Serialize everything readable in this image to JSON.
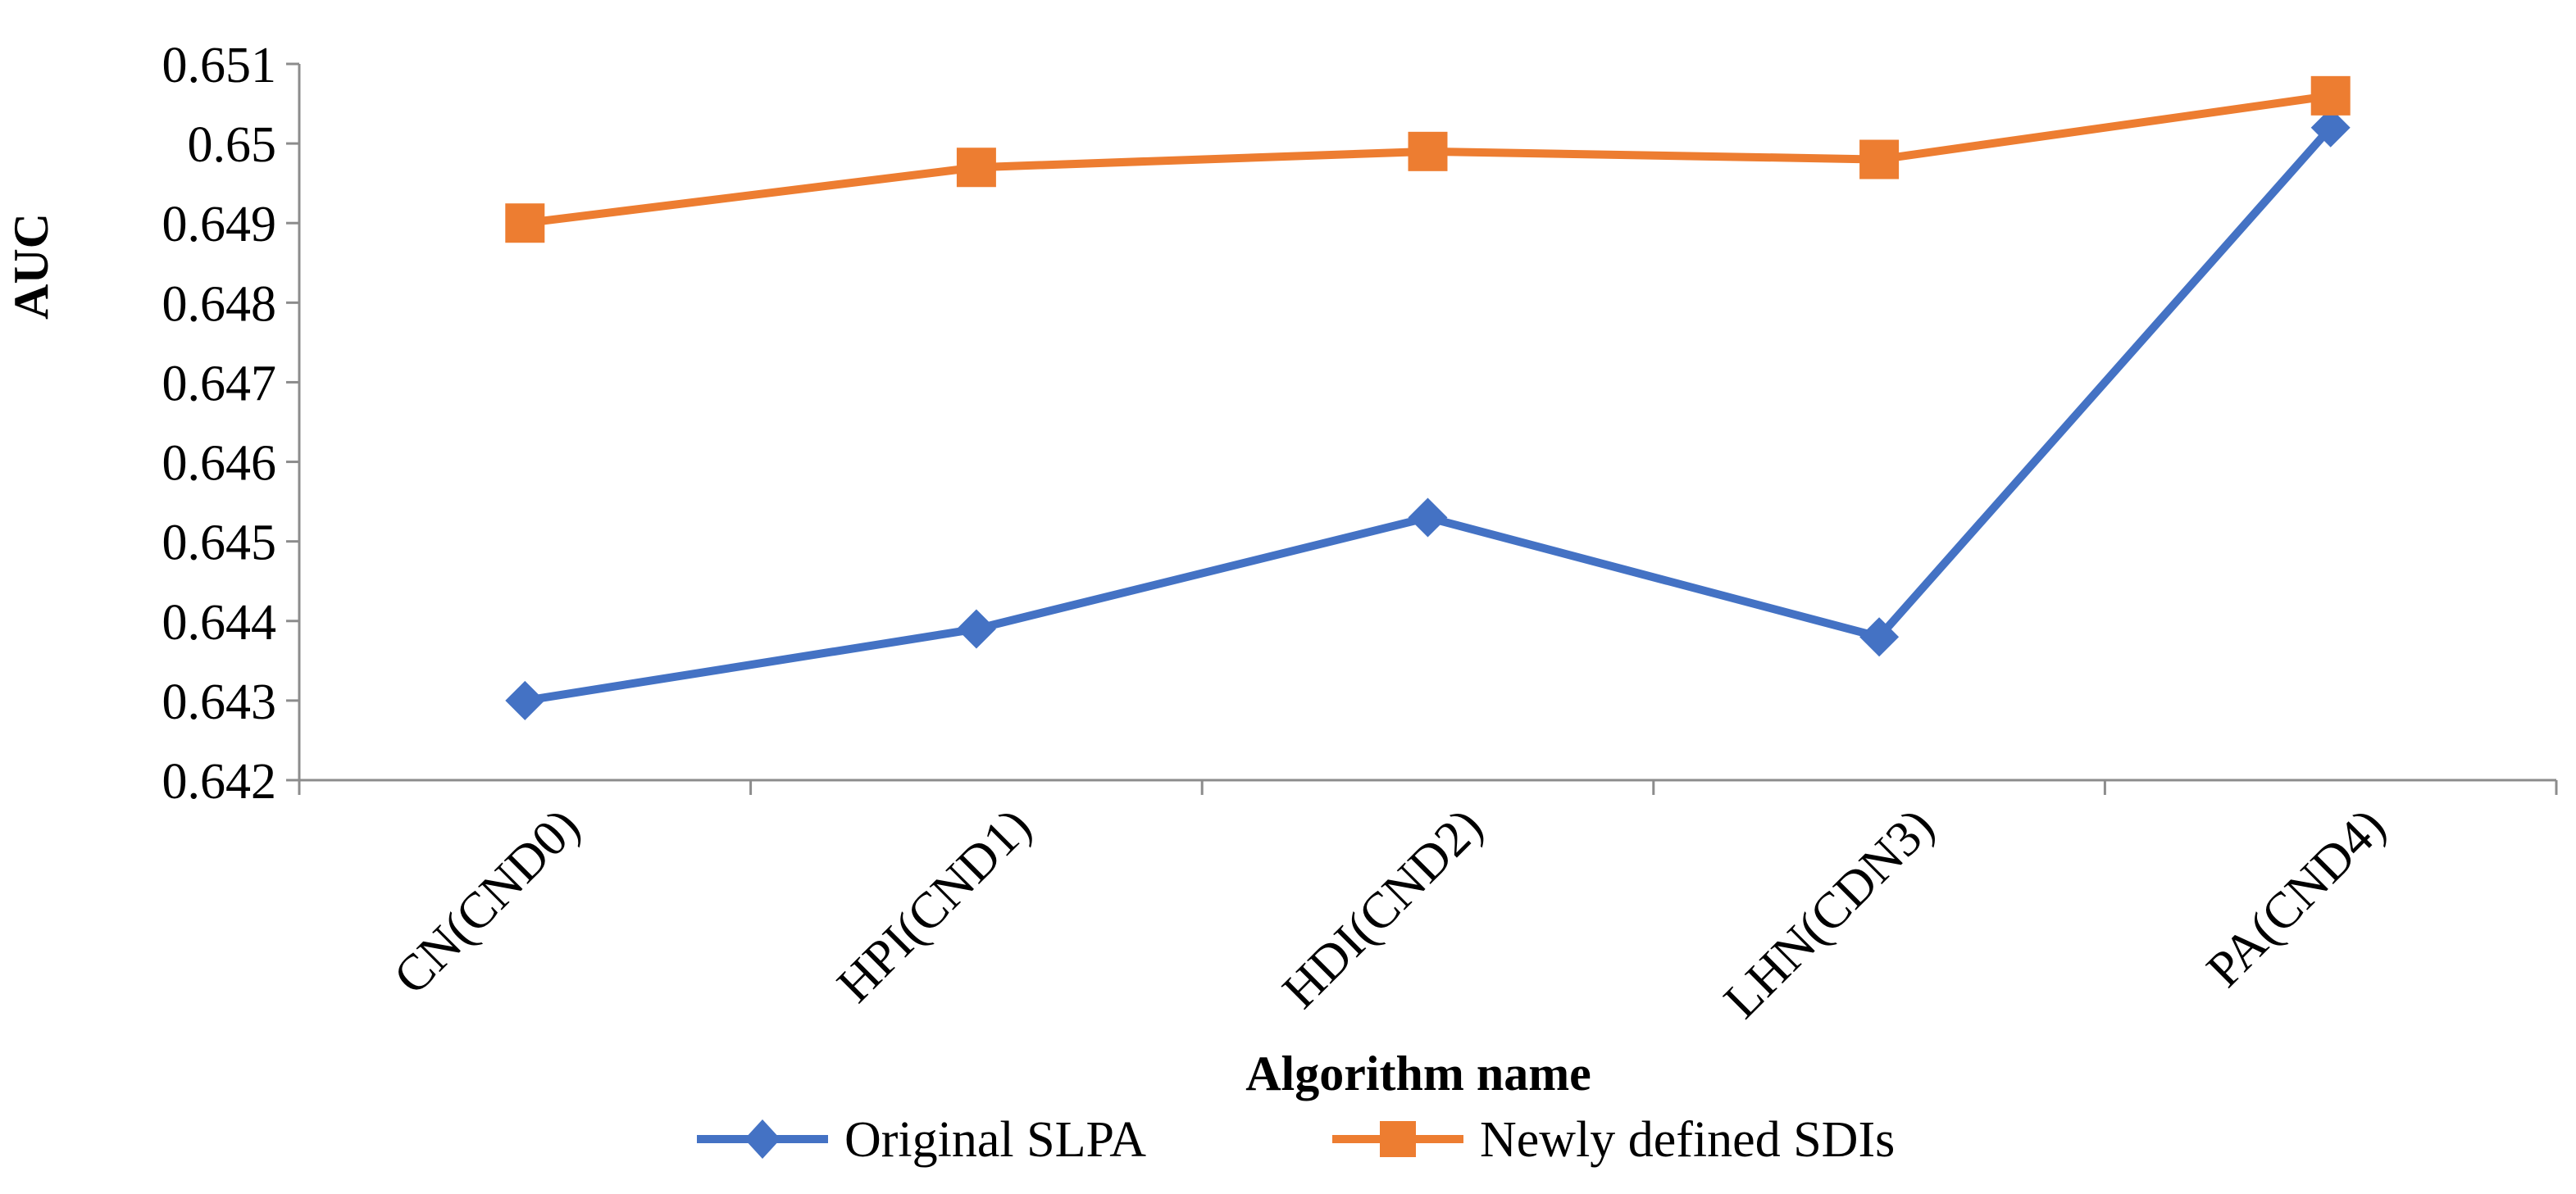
{
  "chart_data": {
    "type": "line",
    "title": "",
    "xlabel": "Algorithm name",
    "ylabel": "AUC",
    "categories": [
      "CN(CND0)",
      "HPI(CND1)",
      "HDI(CND2)",
      "LHN(CDN3)",
      "PA(CND4)"
    ],
    "ylim": [
      0.642,
      0.651
    ],
    "yticks": [
      "0.642",
      "0.643",
      "0.644",
      "0.645",
      "0.646",
      "0.647",
      "0.648",
      "0.649",
      "0.65",
      "0.651"
    ],
    "grid": false,
    "legend_position": "bottom",
    "series": [
      {
        "name": "Original SLPA",
        "values": [
          0.643,
          0.6439,
          0.6453,
          0.6438,
          0.6502
        ],
        "color": "#4472C4",
        "marker": "diamond"
      },
      {
        "name": "Newly defined SDIs",
        "values": [
          0.649,
          0.6497,
          0.6499,
          0.6498,
          0.6506
        ],
        "color": "#ED7D31",
        "marker": "square"
      }
    ]
  }
}
